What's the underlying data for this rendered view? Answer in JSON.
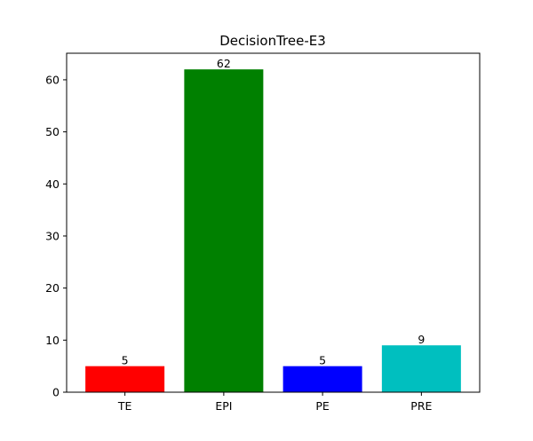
{
  "chart_data": {
    "type": "bar",
    "title": "DecisionTree-E3",
    "categories": [
      "TE",
      "EPI",
      "PE",
      "PRE"
    ],
    "values": [
      5,
      62,
      5,
      9
    ],
    "data_labels": [
      "5",
      "62",
      "5",
      "9"
    ],
    "colors": [
      "#ff0000",
      "#008000",
      "#0000ff",
      "#00bfbf"
    ],
    "ylim": [
      0,
      65.1
    ],
    "yticks": [
      0,
      10,
      20,
      30,
      40,
      50,
      60
    ],
    "ytick_labels": [
      "0",
      "10",
      "20",
      "30",
      "40",
      "50",
      "60"
    ],
    "grid": false,
    "xlabel": "",
    "ylabel": ""
  }
}
